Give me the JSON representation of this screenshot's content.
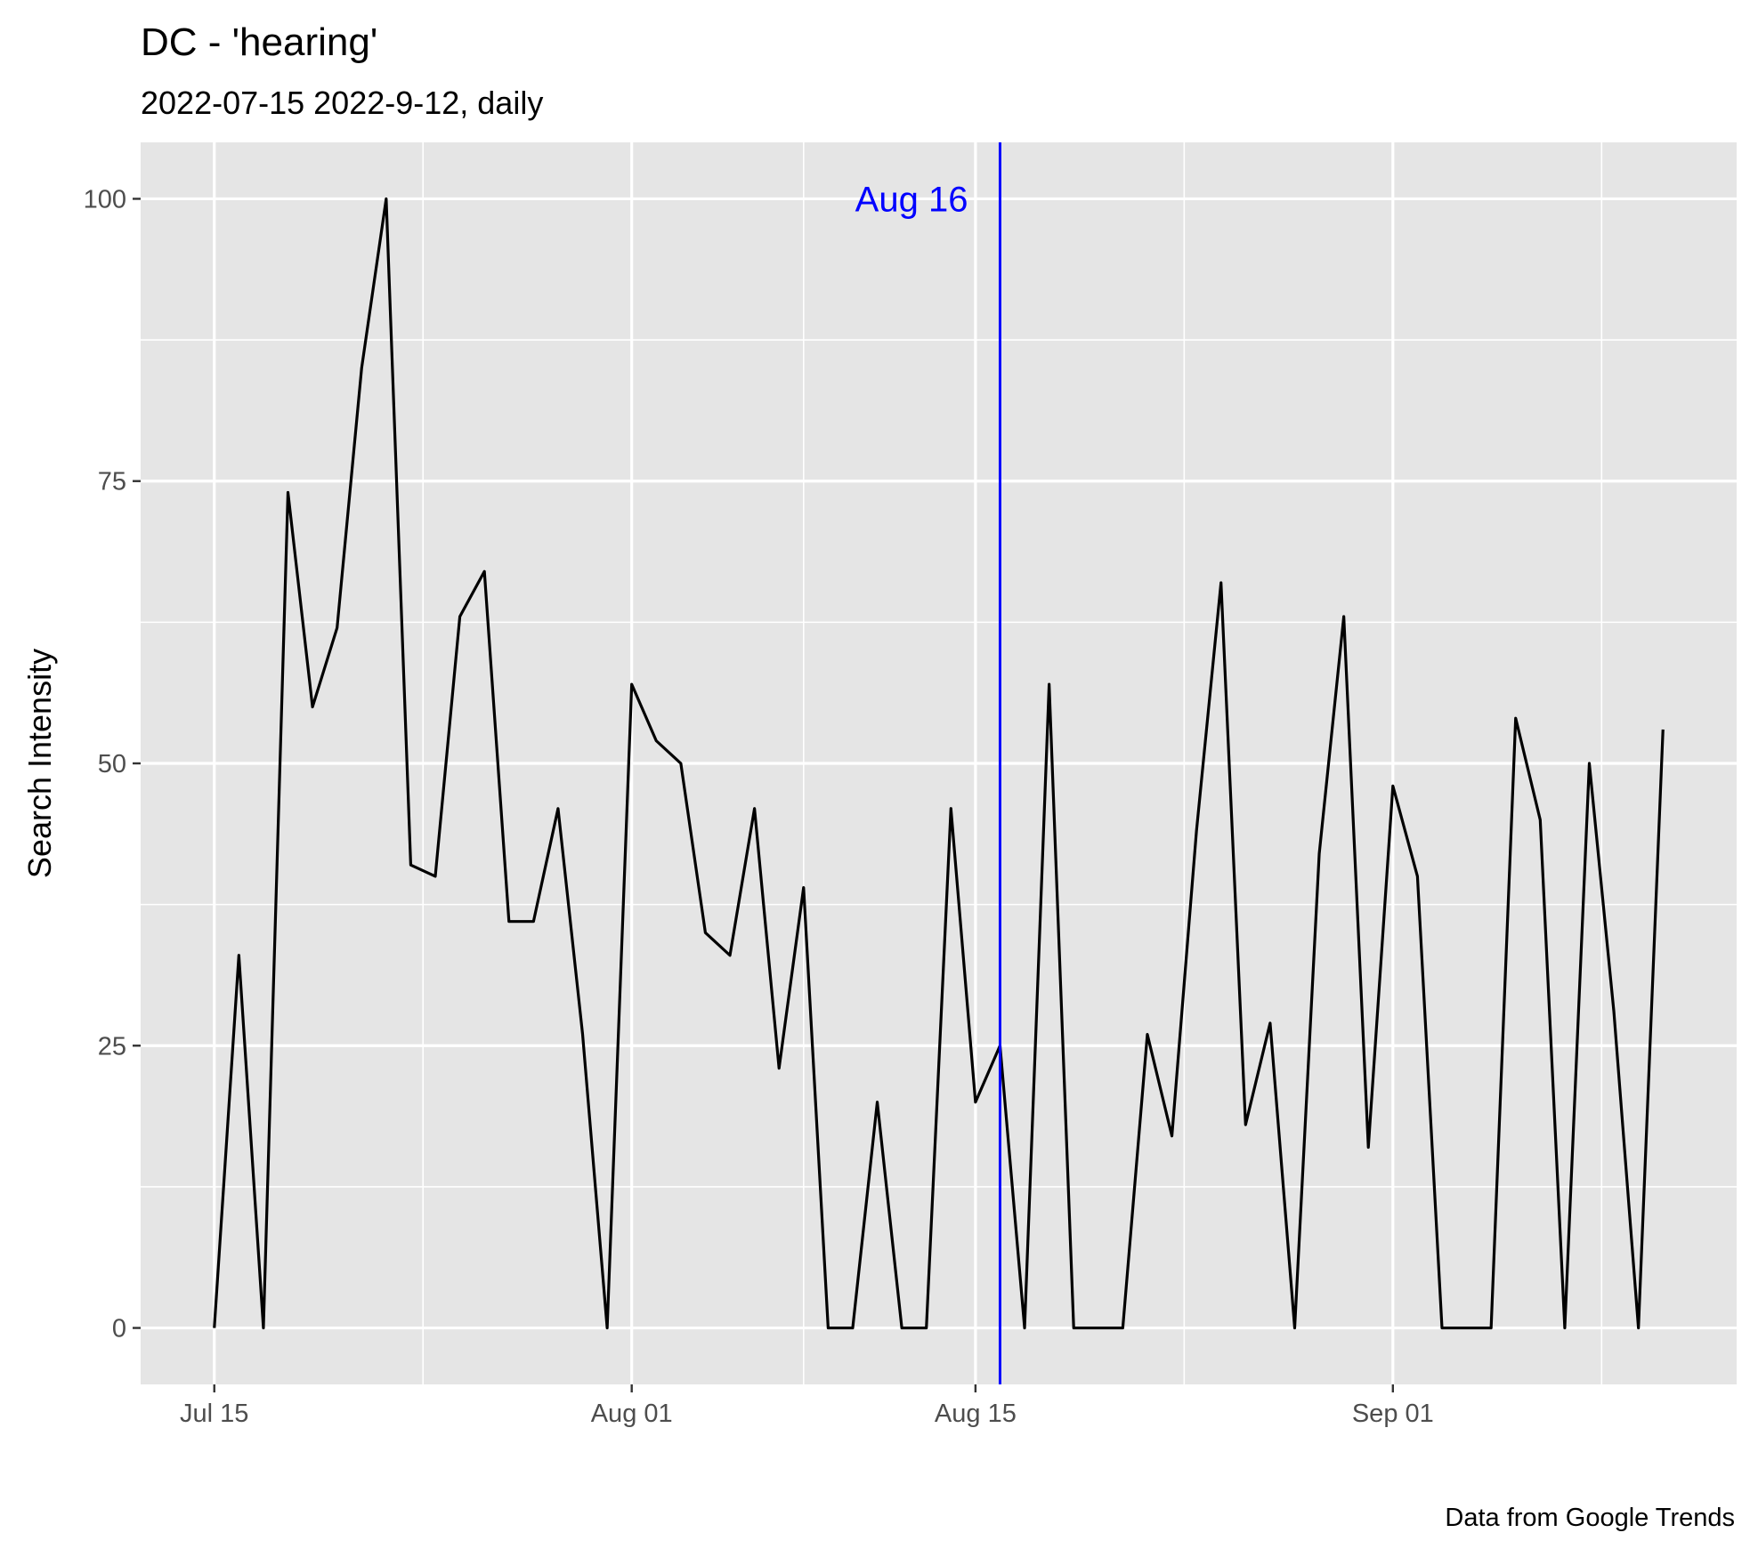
{
  "title": "DC  - 'hearing'",
  "subtitle": "2022-07-15 2022-9-12, daily",
  "caption": "Data from Google Trends",
  "chart_data": {
    "type": "line",
    "title": "DC  - 'hearing'",
    "subtitle": "2022-07-15 2022-9-12, daily",
    "xlabel": "",
    "ylabel": "Search Intensity",
    "x_start": "2022-07-15",
    "x_end": "2022-09-12",
    "xlim": [
      "2022-07-12",
      "2022-09-15"
    ],
    "ylim": [
      -5,
      105
    ],
    "x_ticks": [
      {
        "date": "2022-07-15",
        "label": "Jul 15"
      },
      {
        "date": "2022-08-01",
        "label": "Aug 01"
      },
      {
        "date": "2022-08-15",
        "label": "Aug 15"
      },
      {
        "date": "2022-09-01",
        "label": "Sep 01"
      }
    ],
    "y_ticks": [
      0,
      25,
      50,
      75,
      100
    ],
    "grid": true,
    "line_color": "#000000",
    "series": [
      {
        "x": [
          "2022-07-15",
          "2022-07-16",
          "2022-07-17",
          "2022-07-18",
          "2022-07-19",
          "2022-07-20",
          "2022-07-21",
          "2022-07-22",
          "2022-07-23",
          "2022-07-24",
          "2022-07-25",
          "2022-07-26",
          "2022-07-27",
          "2022-07-28",
          "2022-07-29",
          "2022-07-30",
          "2022-07-31",
          "2022-08-01",
          "2022-08-02",
          "2022-08-03",
          "2022-08-04",
          "2022-08-05",
          "2022-08-06",
          "2022-08-07",
          "2022-08-08",
          "2022-08-09",
          "2022-08-10",
          "2022-08-11",
          "2022-08-12",
          "2022-08-13",
          "2022-08-14",
          "2022-08-15",
          "2022-08-16",
          "2022-08-17",
          "2022-08-18",
          "2022-08-19",
          "2022-08-20",
          "2022-08-21",
          "2022-08-22",
          "2022-08-23",
          "2022-08-24",
          "2022-08-25",
          "2022-08-26",
          "2022-08-27",
          "2022-08-28",
          "2022-08-29",
          "2022-08-30",
          "2022-08-31",
          "2022-09-01",
          "2022-09-02",
          "2022-09-03",
          "2022-09-04",
          "2022-09-05",
          "2022-09-06",
          "2022-09-07",
          "2022-09-08",
          "2022-09-09",
          "2022-09-10",
          "2022-09-11",
          "2022-09-12"
        ],
        "values": [
          0,
          33,
          0,
          74,
          55,
          62,
          85,
          100,
          41,
          40,
          63,
          67,
          36,
          36,
          46,
          26,
          0,
          57,
          52,
          50,
          35,
          33,
          46,
          23,
          39,
          0,
          0,
          20,
          0,
          0,
          46,
          20,
          25,
          0,
          57,
          0,
          0,
          0,
          26,
          17,
          44,
          66,
          18,
          27,
          0,
          42,
          63,
          16,
          48,
          40,
          0,
          0,
          0,
          54,
          45,
          0,
          50,
          28,
          0,
          53
        ]
      }
    ],
    "annotations": [
      {
        "type": "vline",
        "x": "2022-08-16",
        "label": "Aug 16",
        "label_y": 100,
        "color": "#0000ff"
      }
    ]
  }
}
